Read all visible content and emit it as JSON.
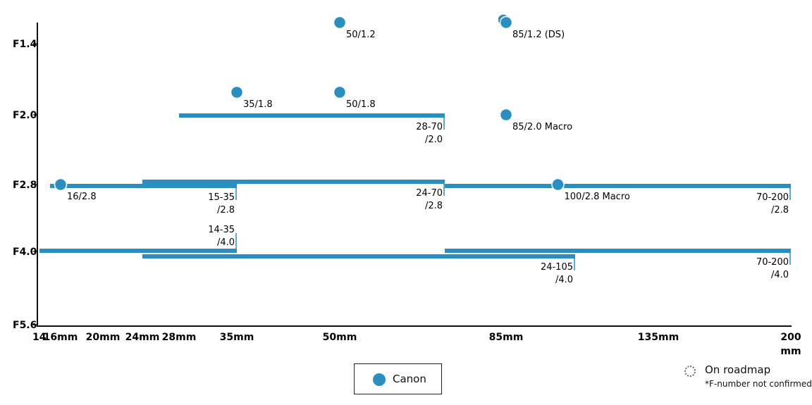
{
  "chart_data": {
    "type": "scatter",
    "brand_color": "#2a8fbf",
    "x_axis": {
      "ticks": [
        {
          "value": 14,
          "label": "14"
        },
        {
          "value": 16,
          "label": "16mm"
        },
        {
          "value": 20,
          "label": "20mm"
        },
        {
          "value": 24,
          "label": "24mm"
        },
        {
          "value": 28,
          "label": "28mm"
        },
        {
          "value": 35,
          "label": "35mm"
        },
        {
          "value": 50,
          "label": "50mm"
        },
        {
          "value": 85,
          "label": "85mm"
        },
        {
          "value": 135,
          "label": "135mm"
        },
        {
          "value": 200,
          "label": "200"
        }
      ],
      "unit_label": "mm"
    },
    "y_axis": {
      "ticks": [
        {
          "value": 1.4,
          "label": "F1.4"
        },
        {
          "value": 2.0,
          "label": "F2.0"
        },
        {
          "value": 2.8,
          "label": "F2.8"
        },
        {
          "value": 4.0,
          "label": "F4.0"
        },
        {
          "value": 5.6,
          "label": "F5.6"
        }
      ]
    },
    "zoom_lenses": [
      {
        "name": "15-35/2.8",
        "label_lines": [
          "15-35",
          "/2.8"
        ],
        "min_focal": 15,
        "max_focal": 35,
        "aperture": 2.8
      },
      {
        "name": "24-70/2.8",
        "label_lines": [
          "24-70",
          "/2.8"
        ],
        "min_focal": 24,
        "max_focal": 70,
        "aperture": 2.8
      },
      {
        "name": "70-200/2.8",
        "label_lines": [
          "70-200",
          "/2.8"
        ],
        "min_focal": 70,
        "max_focal": 200,
        "aperture": 2.8
      },
      {
        "name": "28-70/2.0",
        "label_lines": [
          "28-70",
          "/2.0"
        ],
        "min_focal": 28,
        "max_focal": 70,
        "aperture": 2.0
      },
      {
        "name": "14-35/4.0",
        "label_lines": [
          "14-35",
          "/4.0"
        ],
        "min_focal": 14,
        "max_focal": 35,
        "aperture": 4.0
      },
      {
        "name": "24-105/4.0",
        "label_lines": [
          "24-105",
          "/4.0"
        ],
        "min_focal": 24,
        "max_focal": 105,
        "aperture": 4.0
      },
      {
        "name": "70-200/4.0",
        "label_lines": [
          "70-200",
          "/4.0"
        ],
        "min_focal": 70,
        "max_focal": 200,
        "aperture": 4.0
      }
    ],
    "prime_lenses": [
      {
        "label": "50/1.2",
        "focal": 50,
        "aperture": 1.2
      },
      {
        "label": "85/1.2 (DS)",
        "focal": 85,
        "aperture": 1.2
      },
      {
        "label": "35/1.8",
        "focal": 35,
        "aperture": 1.8
      },
      {
        "label": "50/1.8",
        "focal": 50,
        "aperture": 1.8
      },
      {
        "label": "85/2.0 Macro",
        "focal": 85,
        "aperture": 2.0
      },
      {
        "label": "16/2.8",
        "focal": 16,
        "aperture": 2.8
      },
      {
        "label": "100/2.8 Macro",
        "focal": 100,
        "aperture": 2.8
      }
    ]
  },
  "legend": {
    "canon_label": "Canon",
    "roadmap_label": "On roadmap",
    "roadmap_note": "*F-number not confirmed"
  }
}
